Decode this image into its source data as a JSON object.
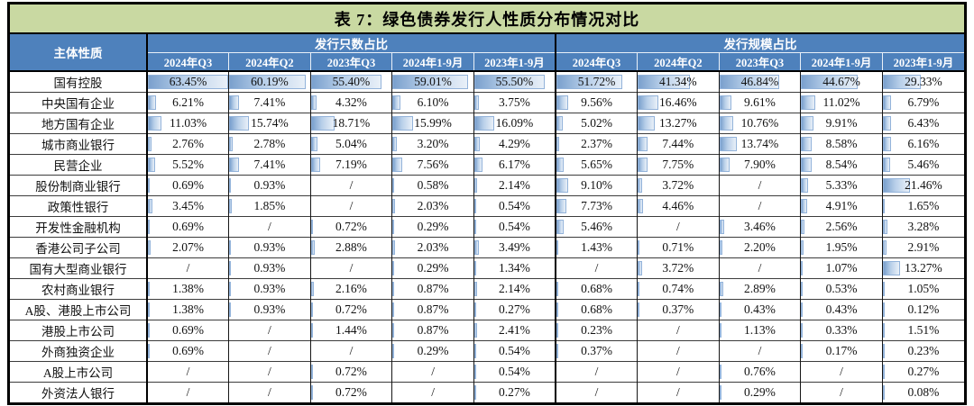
{
  "title": "表 7：绿色债券发行人性质分布情况对比",
  "colors": {
    "title_bg": "#c9d9a2",
    "header_bg": "#4e81bc",
    "bar_dark": "#7aa0cd",
    "bar_border": "#93b3da"
  },
  "table": {
    "corner_header": "主体性质",
    "group_headers": [
      "发行只数占比",
      "发行规模占比"
    ],
    "periods": [
      "2024年Q3",
      "2024年Q2",
      "2023年Q3",
      "2024年1-9月",
      "2023年1-9月"
    ],
    "bar_scale_max": 63.45,
    "empty_marker": "/",
    "rows": [
      {
        "label": "国有控股",
        "count": [
          "63.45%",
          "60.19%",
          "55.40%",
          "59.01%",
          "55.50%"
        ],
        "scale": [
          "51.72%",
          "41.34%",
          "46.84%",
          "44.67%",
          "29.33%"
        ]
      },
      {
        "label": "中央国有企业",
        "count": [
          "6.21%",
          "7.41%",
          "4.32%",
          "6.10%",
          "3.75%"
        ],
        "scale": [
          "9.56%",
          "16.46%",
          "9.61%",
          "11.02%",
          "6.79%"
        ]
      },
      {
        "label": "地方国有企业",
        "count": [
          "11.03%",
          "15.74%",
          "18.71%",
          "15.99%",
          "16.09%"
        ],
        "scale": [
          "5.02%",
          "13.27%",
          "10.76%",
          "9.91%",
          "6.43%"
        ]
      },
      {
        "label": "城市商业银行",
        "count": [
          "2.76%",
          "2.78%",
          "5.04%",
          "3.20%",
          "4.29%"
        ],
        "scale": [
          "2.37%",
          "7.44%",
          "13.74%",
          "8.58%",
          "6.16%"
        ]
      },
      {
        "label": "民营企业",
        "count": [
          "5.52%",
          "7.41%",
          "7.19%",
          "7.56%",
          "6.17%"
        ],
        "scale": [
          "5.65%",
          "7.75%",
          "7.90%",
          "8.54%",
          "5.46%"
        ]
      },
      {
        "label": "股份制商业银行",
        "count": [
          "0.69%",
          "0.93%",
          "/",
          "0.58%",
          "2.14%"
        ],
        "scale": [
          "9.10%",
          "3.72%",
          "/",
          "5.33%",
          "21.46%"
        ]
      },
      {
        "label": "政策性银行",
        "count": [
          "3.45%",
          "1.85%",
          "/",
          "2.03%",
          "0.54%"
        ],
        "scale": [
          "7.73%",
          "4.46%",
          "/",
          "4.91%",
          "1.65%"
        ]
      },
      {
        "label": "开发性金融机构",
        "count": [
          "0.69%",
          "/",
          "0.72%",
          "0.29%",
          "0.54%"
        ],
        "scale": [
          "5.46%",
          "/",
          "3.46%",
          "2.56%",
          "3.28%"
        ]
      },
      {
        "label": "香港公司子公司",
        "count": [
          "2.07%",
          "0.93%",
          "2.88%",
          "2.03%",
          "3.49%"
        ],
        "scale": [
          "1.43%",
          "0.71%",
          "2.20%",
          "1.95%",
          "2.91%"
        ]
      },
      {
        "label": "国有大型商业银行",
        "count": [
          "/",
          "0.93%",
          "/",
          "0.29%",
          "1.34%"
        ],
        "scale": [
          "/",
          "3.72%",
          "/",
          "1.07%",
          "13.27%"
        ]
      },
      {
        "label": "农村商业银行",
        "count": [
          "1.38%",
          "0.93%",
          "2.16%",
          "0.87%",
          "2.14%"
        ],
        "scale": [
          "0.68%",
          "0.74%",
          "2.89%",
          "0.53%",
          "1.05%"
        ]
      },
      {
        "label": "A股、港股上市公司",
        "count": [
          "1.38%",
          "0.93%",
          "0.72%",
          "0.87%",
          "0.27%"
        ],
        "scale": [
          "0.68%",
          "0.37%",
          "0.43%",
          "0.43%",
          "0.12%"
        ]
      },
      {
        "label": "港股上市公司",
        "count": [
          "0.69%",
          "/",
          "1.44%",
          "0.87%",
          "2.41%"
        ],
        "scale": [
          "0.23%",
          "/",
          "1.13%",
          "0.33%",
          "1.51%"
        ]
      },
      {
        "label": "外商独资企业",
        "count": [
          "0.69%",
          "/",
          "/",
          "0.29%",
          "0.54%"
        ],
        "scale": [
          "0.37%",
          "/",
          "/",
          "0.17%",
          "0.23%"
        ]
      },
      {
        "label": "A股上市公司",
        "count": [
          "/",
          "/",
          "0.72%",
          "/",
          "0.54%"
        ],
        "scale": [
          "/",
          "/",
          "0.76%",
          "/",
          "0.27%"
        ]
      },
      {
        "label": "外资法人银行",
        "count": [
          "/",
          "/",
          "0.72%",
          "/",
          "0.27%"
        ],
        "scale": [
          "/",
          "/",
          "0.29%",
          "/",
          "0.08%"
        ]
      }
    ]
  }
}
